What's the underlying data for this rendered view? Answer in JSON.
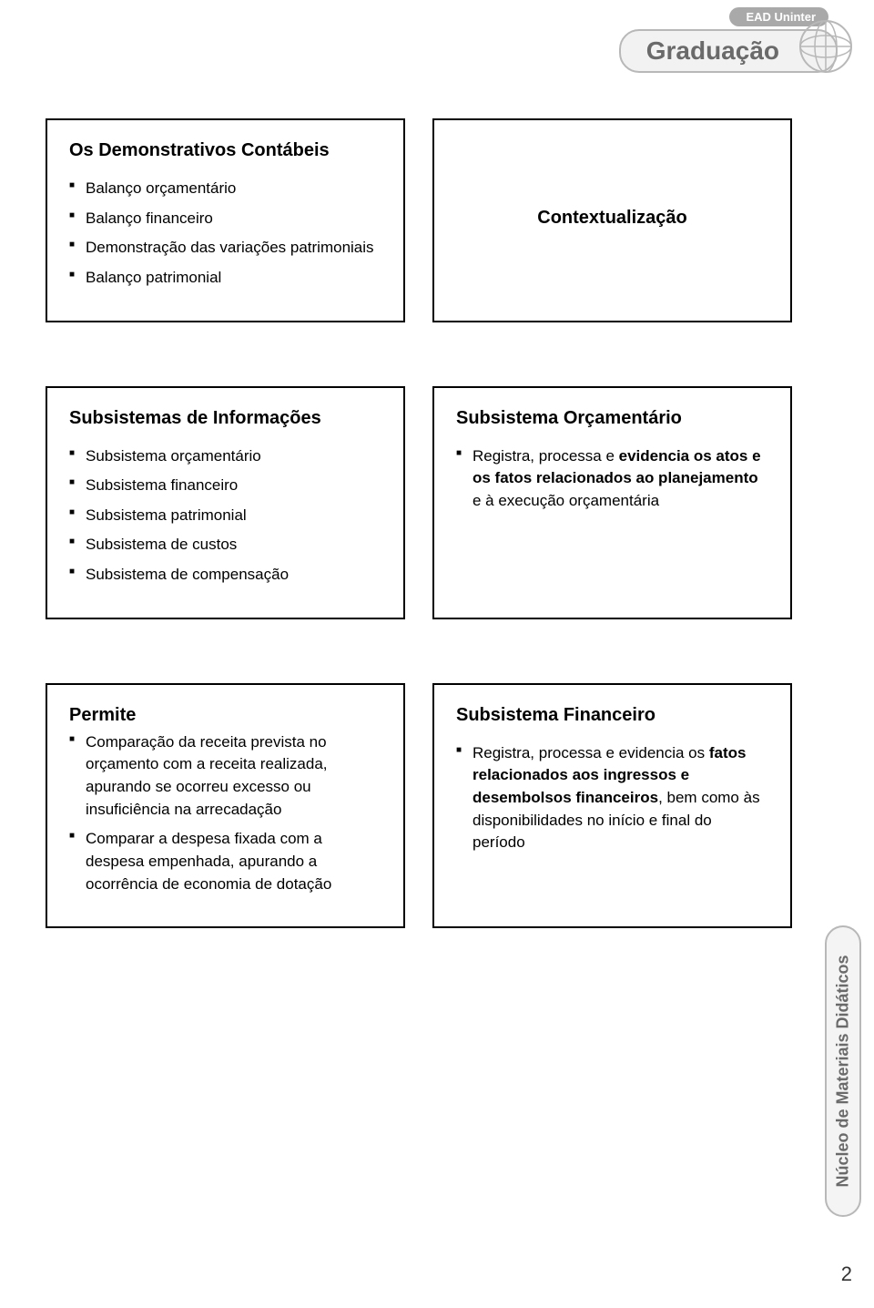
{
  "header": {
    "ead_label": "EAD Uninter",
    "grad_label": "Graduação"
  },
  "colors": {
    "pill_border": "#b8b8b8",
    "pill_bg": "#f2f2f2",
    "pill_text": "#6a6a6a",
    "ead_bg": "#a9a9a9",
    "box_border": "#000000",
    "page_bg": "#ffffff"
  },
  "boxes": {
    "demonstrativos": {
      "title": "Os Demonstrativos Contábeis",
      "items": [
        "Balanço orçamentário",
        "Balanço financeiro",
        "Demonstração das variações patrimoniais",
        "Balanço patrimonial"
      ]
    },
    "contextualizacao": {
      "title": "Contextualização"
    },
    "subsistemas_info": {
      "title": "Subsistemas de Informações",
      "items": [
        "Subsistema orçamentário",
        "Subsistema financeiro",
        "Subsistema patrimonial",
        "Subsistema de custos",
        "Subsistema de compensação"
      ]
    },
    "subsistema_orcamentario": {
      "title": "Subsistema Orçamentário",
      "item_html": "Registra, processa e <b>evidencia os atos e os fatos relacionados ao planejamento</b> e à execução orçamentária"
    },
    "permite": {
      "title": "Permite",
      "items": [
        "Comparação da receita prevista no orçamento com a receita realizada, apurando se ocorreu excesso ou insuficiência na arrecadação",
        "Comparar a despesa fixada com a despesa empenhada, apurando a ocorrência de economia de dotação"
      ]
    },
    "subsistema_financeiro": {
      "title": "Subsistema Financeiro",
      "item_html": "Registra, processa e evidencia os <b>fatos relacionados aos ingressos e desembolsos financeiros</b>, bem como às disponibilidades no início e final do período"
    }
  },
  "side_label": "Núcleo de Materiais Didáticos",
  "page_number": "2"
}
